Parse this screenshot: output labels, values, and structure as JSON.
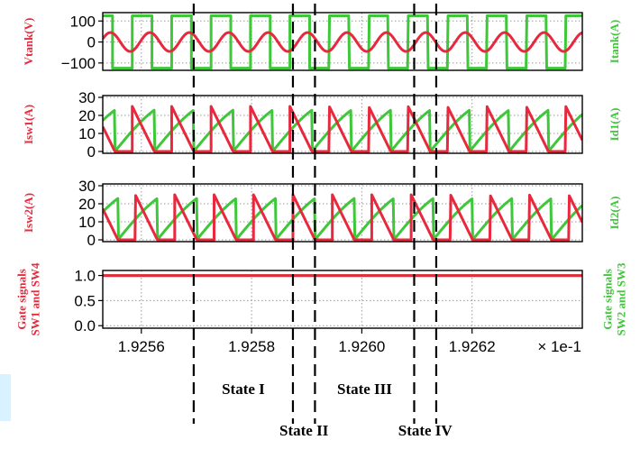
{
  "chart_data": {
    "type": "line",
    "x_axis": {
      "range": [
        1.92553,
        1.9264
      ],
      "ticks": [
        1.9256,
        1.9258,
        1.926,
        1.9262
      ],
      "tick_labels": [
        "1.9256",
        "1.9258",
        "1.9260",
        "1.9262"
      ],
      "scale_label": "× 1e-1"
    },
    "period": 7.15e-05,
    "colors": {
      "red": "#e8283c",
      "green": "#3fc73a"
    },
    "grid": "dotted, all panels",
    "panels": [
      {
        "id": "tank",
        "left_label": "Vtank(V)",
        "right_label": "Itank(A)",
        "ylim": [
          -135,
          140
        ],
        "yticks": [
          100,
          0,
          -100
        ],
        "ytick_labels": [
          "100",
          "0",
          "−100"
        ],
        "series": [
          {
            "axis": "left",
            "color": "red",
            "shape": "sine",
            "amplitude": 45,
            "peak_at": 1.92583,
            "note_curve": "voltage"
          },
          {
            "axis": "right",
            "color": "green",
            "shape": "square",
            "high": 125,
            "low": -125,
            "high_starts": 1.925655,
            "switch_to_low": 1.925875,
            "note_curve": "current"
          }
        ]
      },
      {
        "id": "sw1",
        "left_label": "Isw1(A)",
        "right_label": "Id1(A)",
        "ylim": [
          -1,
          31
        ],
        "yticks": [
          30,
          20,
          10,
          0
        ],
        "ytick_labels": [
          "30",
          "20",
          "10",
          "0"
        ],
        "series": [
          {
            "axis": "left",
            "color": "red",
            "shape": "decay",
            "start": 1.925655,
            "end": 1.925695,
            "peak": 25
          },
          {
            "axis": "right",
            "color": "green",
            "shape": "hump",
            "start": 1.925695,
            "end": 1.925875,
            "peak": 28.5,
            "peak_at": 1.925815
          }
        ]
      },
      {
        "id": "sw2",
        "left_label": "Isw2(A)",
        "right_label": "Id2(A)",
        "ylim": [
          -1,
          31
        ],
        "yticks": [
          30,
          20,
          10,
          0
        ],
        "ytick_labels": [
          "30",
          "20",
          "10",
          "0"
        ],
        "series": [
          {
            "axis": "left",
            "color": "red",
            "shape": "decay",
            "start": 1.925875,
            "end": 1.925915,
            "peak": 25
          },
          {
            "axis": "right",
            "color": "green",
            "shape": "hump",
            "start": 1.925915,
            "end": 1.926095,
            "peak": 28.5,
            "peak_at": 1.926035
          }
        ]
      },
      {
        "id": "gate",
        "left_label": [
          "Gate signals",
          "SW1 and SW4"
        ],
        "right_label": [
          "Gate signals",
          "SW2 and SW3"
        ],
        "ylim": [
          -0.05,
          1.1
        ],
        "yticks": [
          1.0,
          0.5,
          0.0
        ],
        "ytick_labels": [
          "1.0",
          "0.5",
          "0.0"
        ],
        "series": [
          {
            "axis": "left",
            "color": "red",
            "shape": "pulse",
            "high_from": 1.925875,
            "high_to": 1.926095
          },
          {
            "axis": "right",
            "color": "green",
            "shape": "pulse",
            "high_from": 1.925655,
            "high_to": 1.925875
          }
        ]
      }
    ],
    "state_boundaries": [
      1.925695,
      1.925875,
      1.925915,
      1.926095,
      1.926135
    ],
    "states": [
      {
        "label": "State I",
        "row": 1
      },
      {
        "label": "State II",
        "row": 2
      },
      {
        "label": "State III",
        "row": 1
      },
      {
        "label": "State IV",
        "row": 2
      }
    ]
  }
}
